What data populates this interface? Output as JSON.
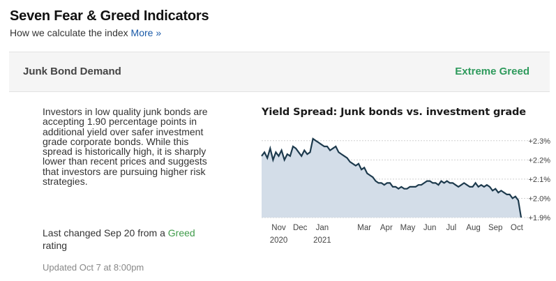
{
  "header": {
    "title": "Seven Fear & Greed Indicators",
    "subtitle": "How we calculate the index",
    "more_link": "More »"
  },
  "indicator": {
    "name": "Junk Bond Demand",
    "rating": "Extreme Greed",
    "rating_color": "#2e9a5c",
    "description": "Investors in low quality junk bonds are accepting 1.90 percentage points in additional yield over safer investment grade corporate bonds. While this spread is historically high, it is sharply lower than recent prices and suggests that investors are pursuing higher risk strategies.",
    "last_changed_prefix": "Last changed Sep 20 from a",
    "last_changed_rating": "Greed",
    "last_changed_suffix": "rating",
    "updated": "Updated Oct 7 at 8:00pm"
  },
  "chart_data": {
    "type": "area",
    "title": "Yield Spread: Junk bonds vs. investment grade",
    "y_tick_labels": [
      "+2.3%",
      "+2.2%",
      "+2.1%",
      "+2.0%",
      "+1.9%"
    ],
    "y_ticks": [
      2.3,
      2.2,
      2.1,
      2.0,
      1.9
    ],
    "ylim": [
      1.9,
      2.35
    ],
    "x_tick_labels": [
      {
        "label": "Nov",
        "sub": "2020"
      },
      {
        "label": "Dec",
        "sub": ""
      },
      {
        "label": "Jan",
        "sub": "2021"
      },
      {
        "label": "Mar",
        "sub": ""
      },
      {
        "label": "Apr",
        "sub": ""
      },
      {
        "label": "May",
        "sub": ""
      },
      {
        "label": "Jun",
        "sub": ""
      },
      {
        "label": "Jul",
        "sub": ""
      },
      {
        "label": "Aug",
        "sub": ""
      },
      {
        "label": "Sep",
        "sub": ""
      },
      {
        "label": "Oct",
        "sub": ""
      }
    ],
    "x_tick_dates": [
      "2020-11-01",
      "2020-12-01",
      "2021-01-01",
      "2021-03-01",
      "2021-04-01",
      "2021-05-01",
      "2021-06-01",
      "2021-07-01",
      "2021-08-01",
      "2021-09-01",
      "2021-10-01"
    ],
    "x_range": [
      "2020-10-08",
      "2021-10-07"
    ],
    "grid": true,
    "line_color": "#1d3a4d",
    "fill_color": "#d3dde8",
    "series": [
      {
        "x": [
          "2020-10-08",
          "2020-10-12",
          "2020-10-16",
          "2020-10-20",
          "2020-10-24",
          "2020-10-28",
          "2020-11-01",
          "2020-11-05",
          "2020-11-09",
          "2020-11-13",
          "2020-11-17",
          "2020-11-21",
          "2020-11-25",
          "2020-11-29",
          "2020-12-03",
          "2020-12-07",
          "2020-12-11",
          "2020-12-15",
          "2020-12-19",
          "2020-12-23",
          "2020-12-27",
          "2020-12-31",
          "2021-01-04",
          "2021-01-08",
          "2021-01-12",
          "2021-01-16",
          "2021-01-20",
          "2021-01-24",
          "2021-01-28",
          "2021-02-01",
          "2021-02-05",
          "2021-02-09",
          "2021-02-13",
          "2021-02-17",
          "2021-02-21",
          "2021-02-25",
          "2021-03-01",
          "2021-03-05",
          "2021-03-09",
          "2021-03-13",
          "2021-03-17",
          "2021-03-21",
          "2021-03-25",
          "2021-03-29",
          "2021-04-02",
          "2021-04-06",
          "2021-04-10",
          "2021-04-14",
          "2021-04-18",
          "2021-04-22",
          "2021-04-26",
          "2021-04-30",
          "2021-05-04",
          "2021-05-08",
          "2021-05-12",
          "2021-05-16",
          "2021-05-20",
          "2021-05-24",
          "2021-05-28",
          "2021-06-01",
          "2021-06-05",
          "2021-06-09",
          "2021-06-13",
          "2021-06-17",
          "2021-06-21",
          "2021-06-25",
          "2021-06-29",
          "2021-07-03",
          "2021-07-07",
          "2021-07-11",
          "2021-07-15",
          "2021-07-19",
          "2021-07-23",
          "2021-07-27",
          "2021-07-31",
          "2021-08-04",
          "2021-08-08",
          "2021-08-12",
          "2021-08-16",
          "2021-08-20",
          "2021-08-24",
          "2021-08-28",
          "2021-09-01",
          "2021-09-05",
          "2021-09-09",
          "2021-09-13",
          "2021-09-17",
          "2021-09-21",
          "2021-09-25",
          "2021-09-29",
          "2021-10-03",
          "2021-10-07"
        ],
        "y": [
          2.22,
          2.24,
          2.21,
          2.26,
          2.2,
          2.24,
          2.22,
          2.25,
          2.2,
          2.23,
          2.22,
          2.27,
          2.26,
          2.24,
          2.22,
          2.25,
          2.23,
          2.24,
          2.31,
          2.3,
          2.29,
          2.28,
          2.27,
          2.27,
          2.25,
          2.26,
          2.27,
          2.24,
          2.23,
          2.22,
          2.21,
          2.19,
          2.18,
          2.17,
          2.18,
          2.15,
          2.16,
          2.13,
          2.12,
          2.11,
          2.09,
          2.08,
          2.08,
          2.07,
          2.08,
          2.08,
          2.06,
          2.06,
          2.05,
          2.06,
          2.05,
          2.05,
          2.06,
          2.06,
          2.06,
          2.07,
          2.07,
          2.08,
          2.09,
          2.09,
          2.08,
          2.08,
          2.07,
          2.09,
          2.08,
          2.09,
          2.08,
          2.08,
          2.07,
          2.06,
          2.07,
          2.08,
          2.07,
          2.06,
          2.06,
          2.08,
          2.06,
          2.07,
          2.06,
          2.07,
          2.06,
          2.04,
          2.05,
          2.03,
          2.04,
          2.03,
          2.02,
          2.02,
          2.0,
          2.01,
          1.99,
          1.9
        ]
      }
    ]
  }
}
